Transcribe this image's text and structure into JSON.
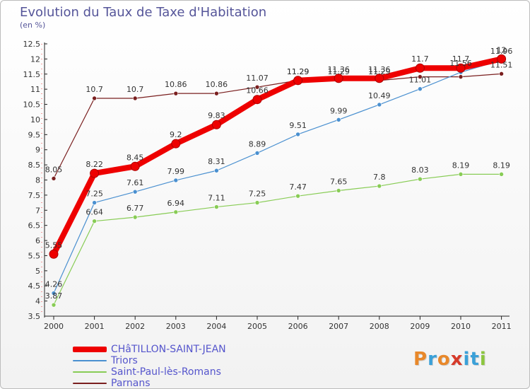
{
  "title": "Evolution du Taux de Taxe d'Habitation",
  "unit": "(en %)",
  "logo": {
    "text": "Proxiti",
    "colors": [
      "#e8882a",
      "#3aa0d8",
      "#e8882a",
      "#d63a2a",
      "#3aa0d8",
      "#3aa0d8",
      "#8cc63f"
    ]
  },
  "chart_data": {
    "type": "line",
    "title": "Evolution du Taux de Taxe d'Habitation",
    "ylabel": "(en %)",
    "x": [
      "2000",
      "2001",
      "2002",
      "2003",
      "2004",
      "2005",
      "2006",
      "2007",
      "2008",
      "2009",
      "2010",
      "2011"
    ],
    "ylim": [
      3.5,
      12.5
    ],
    "yticks": [
      "3.5",
      "4",
      "4.5",
      "5",
      "5.5",
      "6",
      "6.5",
      "7",
      "7.5",
      "8",
      "8.5",
      "9",
      "9.5",
      "10",
      "10.5",
      "11",
      "11.5",
      "12",
      "12.5"
    ],
    "grid": false,
    "legend": "bottom-left",
    "series": [
      {
        "name": "CHâTILLON-SAINT-JEAN",
        "color": "#ee0000",
        "values": [
          5.55,
          8.22,
          8.45,
          9.2,
          9.83,
          10.66,
          11.29,
          11.36,
          11.36,
          11.7,
          11.7,
          12
        ],
        "labels": [
          "5.55",
          "8.22",
          "8.45",
          "9.2",
          "9.83",
          "10.66",
          "11.29",
          "11.36",
          "11.36",
          "11.7",
          "11.7",
          "12"
        ]
      },
      {
        "name": "Triors",
        "color": "#4a90d0",
        "values": [
          4.26,
          7.25,
          7.61,
          7.99,
          8.31,
          8.89,
          9.51,
          9.99,
          10.49,
          11.01,
          11.56,
          11.96
        ],
        "labels": [
          "4.26",
          "7.25",
          "7.61",
          "7.99",
          "8.31",
          "8.89",
          "9.51",
          "9.99",
          "10.49",
          "11.01",
          "11.56",
          "11.96"
        ]
      },
      {
        "name": "Saint-Paul-lès-Romans",
        "color": "#88cc55",
        "values": [
          3.87,
          6.64,
          6.77,
          6.94,
          7.11,
          7.25,
          7.47,
          7.65,
          7.8,
          8.03,
          8.19,
          8.19
        ],
        "labels": [
          "3.87",
          "6.64",
          "6.77",
          "6.94",
          "7.11",
          "7.25",
          "7.47",
          "7.65",
          "7.8",
          "8.03",
          "8.19",
          "8.19"
        ]
      },
      {
        "name": "Parnans",
        "color": "#7a1f1f",
        "values": [
          8.05,
          10.7,
          10.7,
          10.86,
          10.86,
          11.07,
          11.29,
          11.29,
          11.29,
          11.41,
          11.41,
          11.51
        ],
        "labels": [
          "8.05",
          "10.7",
          "10.7",
          "10.86",
          "10.86",
          "11.07",
          "11.29",
          "11.29",
          "11.29",
          "",
          "",
          "11.51"
        ]
      }
    ]
  }
}
